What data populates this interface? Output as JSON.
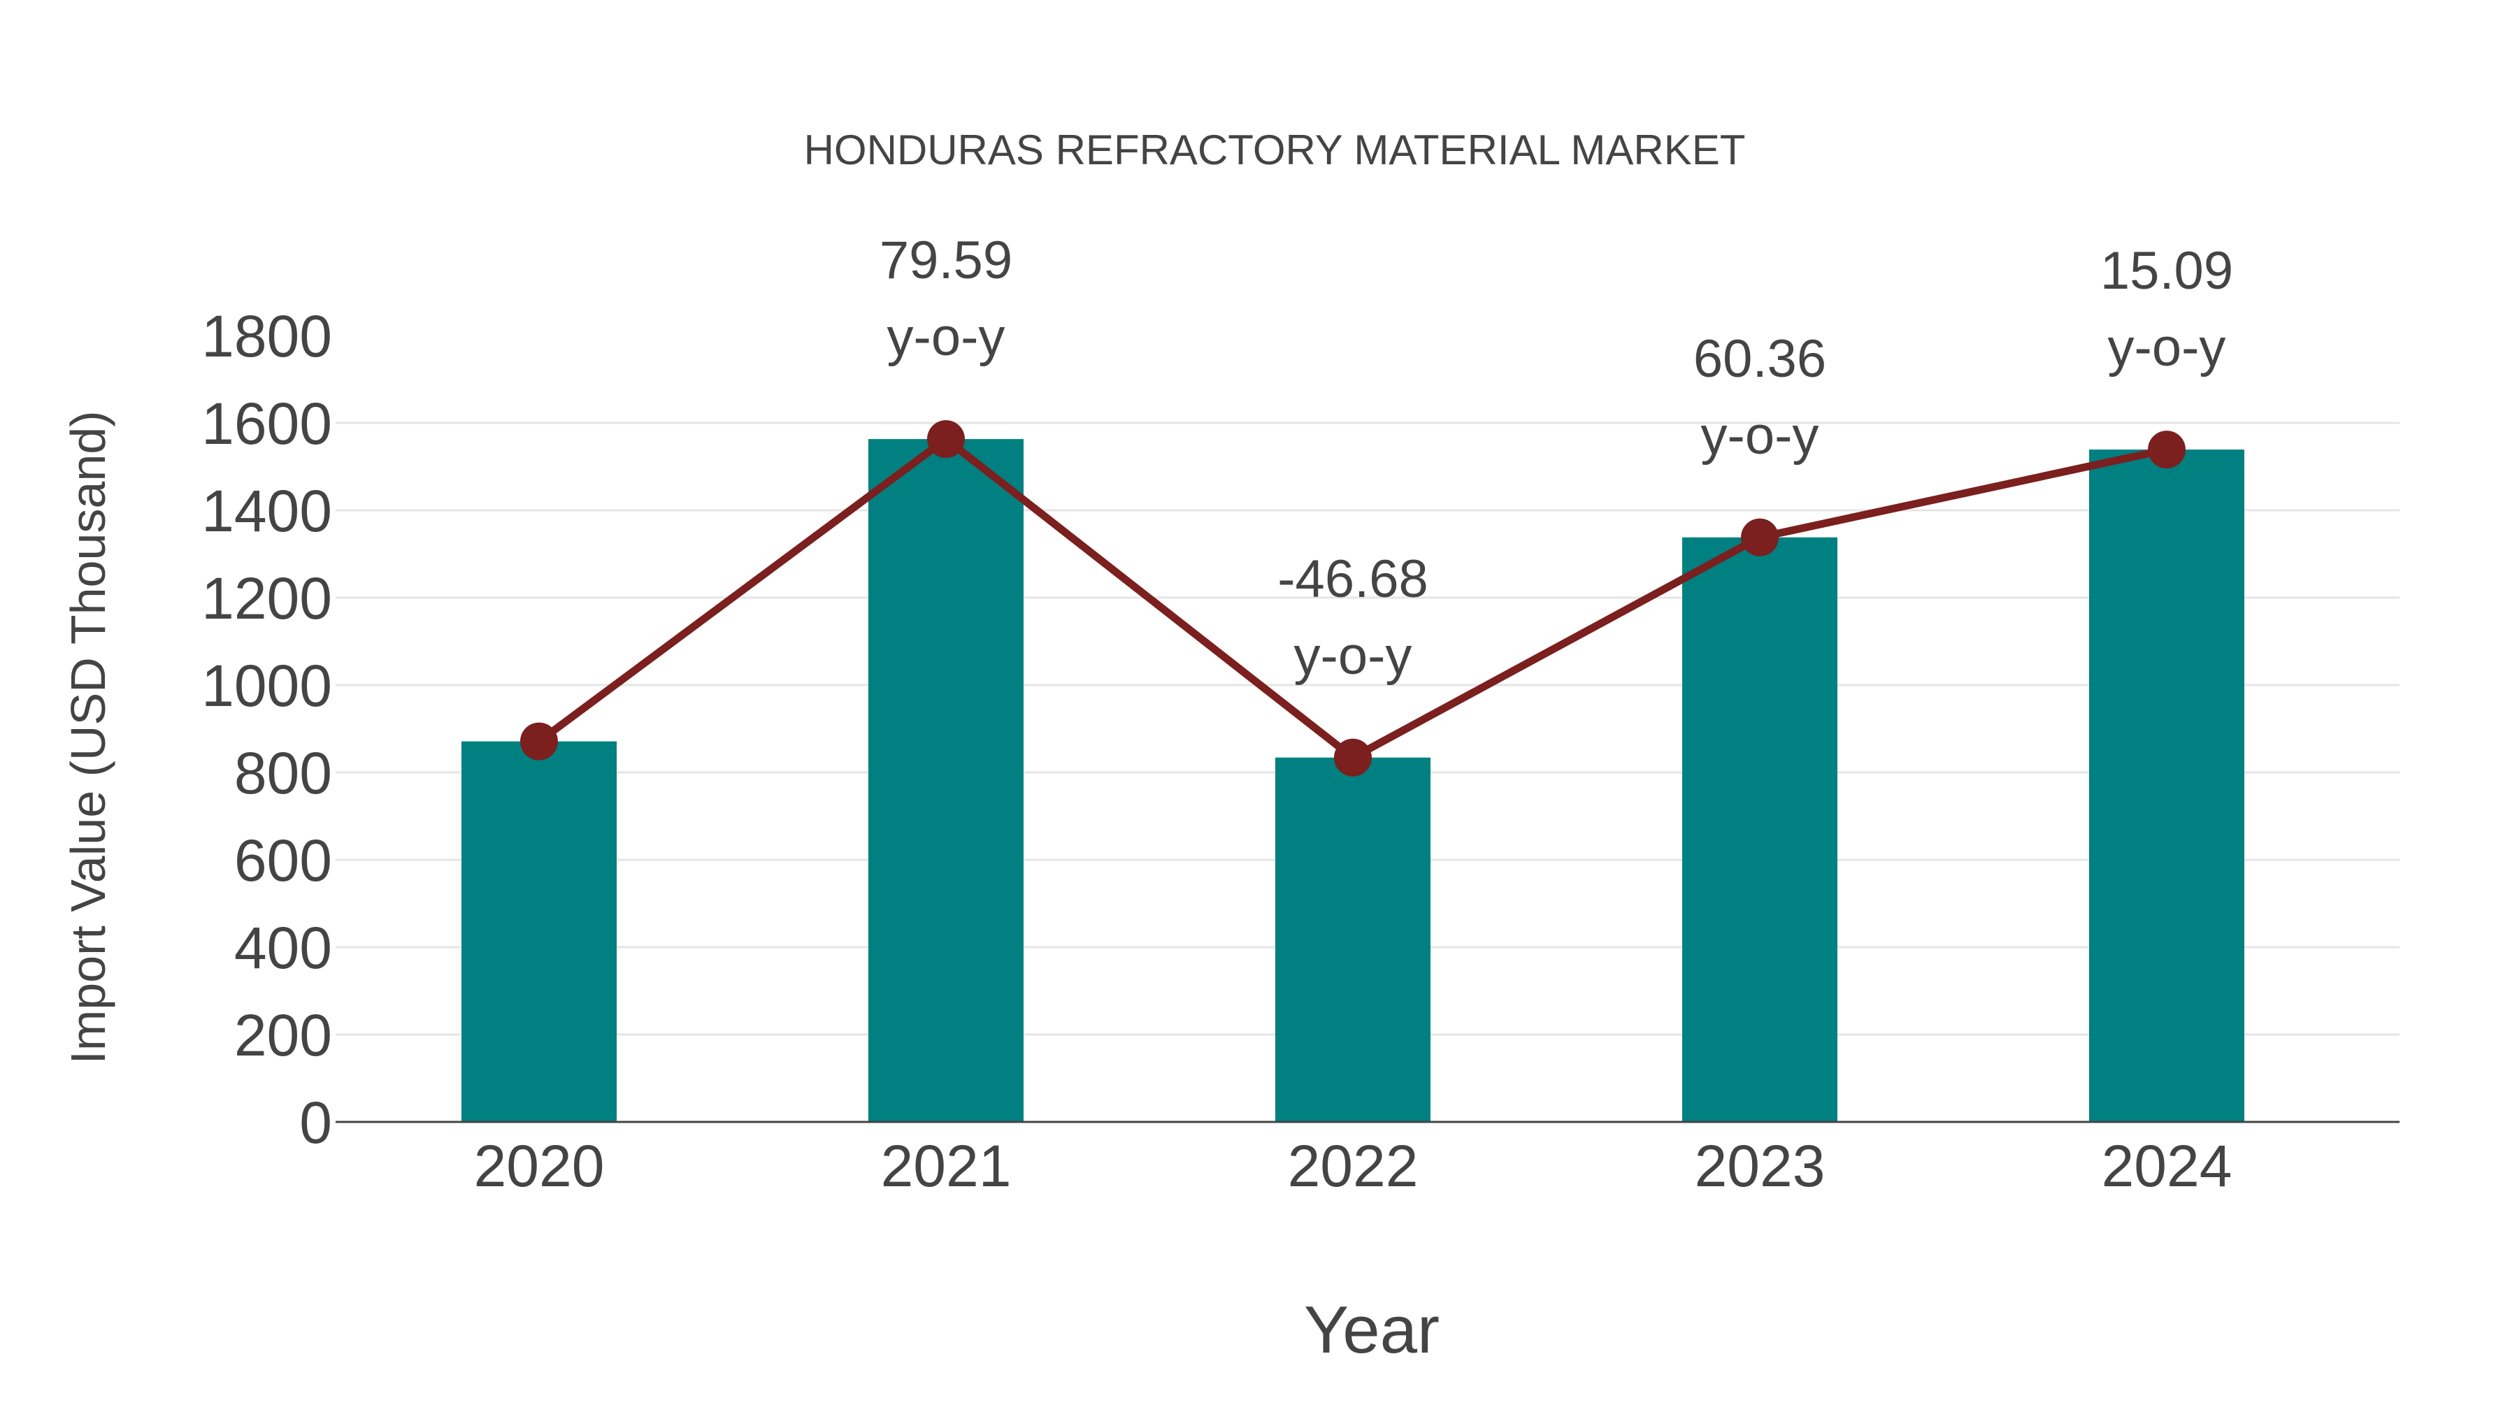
{
  "chart_data": {
    "type": "bar",
    "title": "HONDURAS REFRACTORY MATERIAL MARKET",
    "xlabel": "Year",
    "ylabel": "Import Value (USD Thousand)",
    "categories": [
      "2020",
      "2021",
      "2022",
      "2023",
      "2024"
    ],
    "series": [
      {
        "name": "Import Value",
        "kind": "bar",
        "color": "#008080",
        "values": [
          871,
          1563,
          834,
          1338,
          1539
        ]
      },
      {
        "name": "Import Value (trend)",
        "kind": "line",
        "color": "#7b1f1f",
        "marker": "circle",
        "values": [
          871,
          1563,
          834,
          1338,
          1539
        ]
      }
    ],
    "annotations": [
      {
        "category": "2021",
        "value": "79.59",
        "suffix": "y-o-y"
      },
      {
        "category": "2022",
        "value": "-46.68",
        "suffix": "y-o-y"
      },
      {
        "category": "2023",
        "value": "60.36",
        "suffix": "y-o-y"
      },
      {
        "category": "2024",
        "value": "15.09",
        "suffix": "y-o-y"
      }
    ],
    "ylim": [
      0,
      1800
    ],
    "yticks": [
      0,
      200,
      400,
      600,
      800,
      1000,
      1200,
      1400,
      1600,
      1800
    ],
    "grid": {
      "horizontal": true,
      "vertical": false,
      "color": "#e5e5e5"
    },
    "legend": {
      "visible": false
    },
    "axis_color": "#444444",
    "text_color": "#444444"
  }
}
